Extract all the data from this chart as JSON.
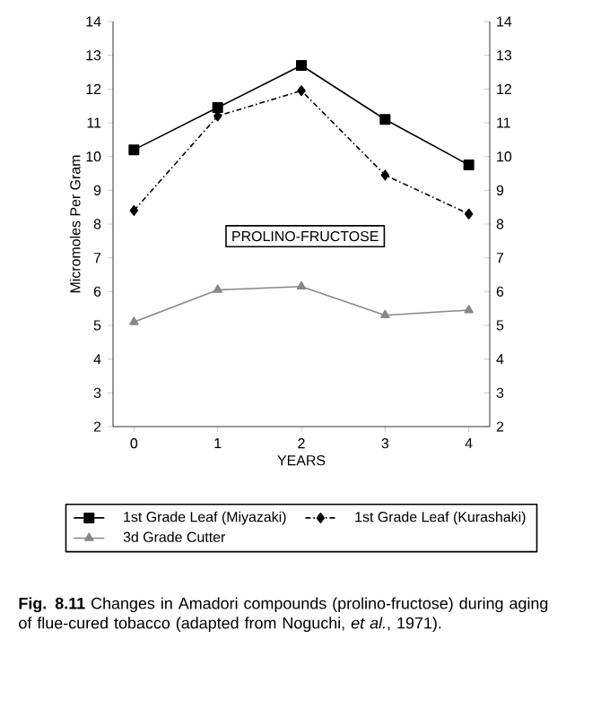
{
  "chart_data": {
    "type": "line",
    "xlabel": "YEARS",
    "ylabel": "Micromoles Per Gram",
    "x": [
      0,
      1,
      2,
      3,
      4
    ],
    "xlim": [
      -0.25,
      4.25
    ],
    "xticks": [
      0,
      1,
      2,
      3,
      4
    ],
    "ylim": [
      2,
      14
    ],
    "yticks": [
      2,
      3,
      4,
      5,
      6,
      7,
      8,
      9,
      10,
      11,
      12,
      13,
      14
    ],
    "y2lim": [
      2,
      14
    ],
    "y2ticks": [
      2,
      3,
      4,
      5,
      6,
      7,
      8,
      9,
      10,
      11,
      12,
      13,
      14
    ],
    "series": [
      {
        "name": "1st Grade Leaf (Miyazaki)",
        "color": "#000000",
        "marker": "square",
        "line_style": "solid",
        "values": [
          10.2,
          11.45,
          12.7,
          11.1,
          9.75
        ]
      },
      {
        "name": "1st Grade Leaf (Kurashaki)",
        "color": "#000000",
        "marker": "diamond",
        "line_style": "dashed",
        "values": [
          8.4,
          11.2,
          11.95,
          9.45,
          8.3
        ]
      },
      {
        "name": "3d Grade Cutter",
        "color": "#888888",
        "marker": "triangle",
        "line_style": "solid",
        "values": [
          5.1,
          6.05,
          6.15,
          5.3,
          5.45
        ]
      }
    ],
    "legend": "bottom",
    "grid": false,
    "annotations": [
      "PROLINO-FRUCTOSE",
      "**Fig. 8.11** Changes in Amadori compounds (prolino-fructose) during aging of flue-cured tobacco (adapted from Noguchi, *et al.*, 1971)."
    ]
  }
}
